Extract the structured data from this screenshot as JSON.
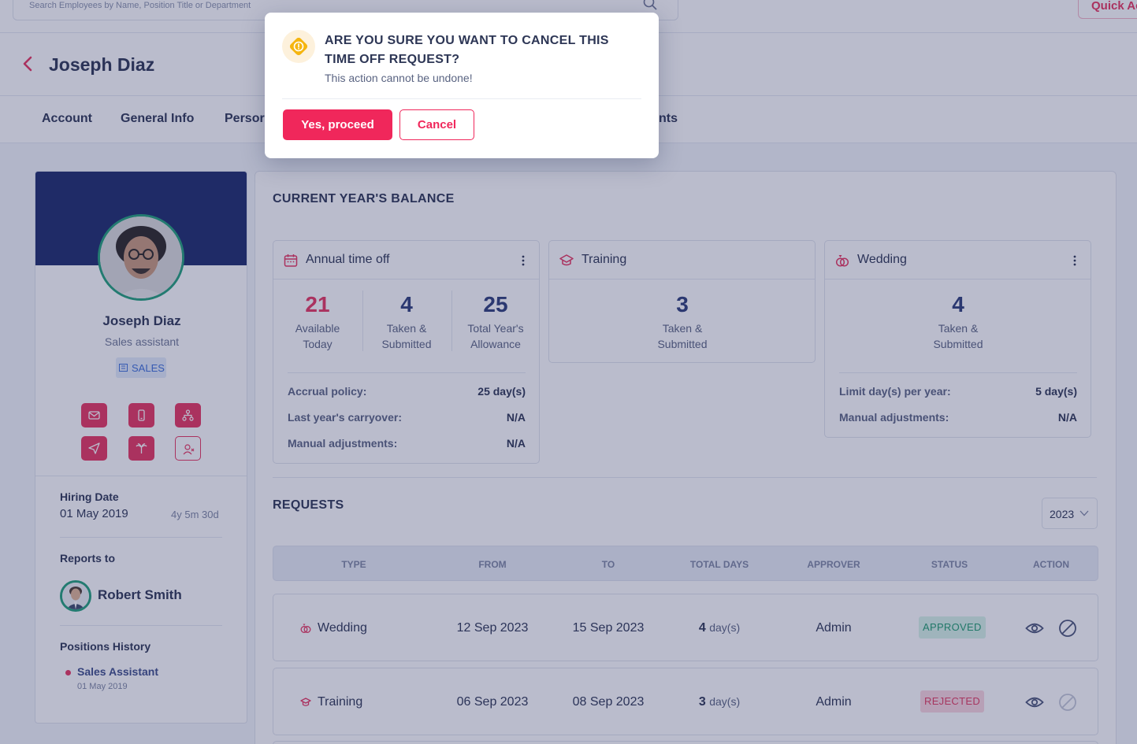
{
  "search": {
    "placeholder": "Search Employees by Name, Position Title or Department"
  },
  "quick_button": {
    "label": "Quick Ac"
  },
  "header": {
    "title": "Joseph Diaz"
  },
  "tabs": [
    {
      "label": "Account"
    },
    {
      "label": "General Info"
    },
    {
      "label": "Persor"
    },
    {
      "label": "nts"
    }
  ],
  "profile": {
    "name": "Joseph Diaz",
    "role": "Sales assistant",
    "department": "SALES",
    "hiring_date_label": "Hiring Date",
    "hiring_date": "01 May 2019",
    "tenure": "4y 5m 30d",
    "reports_to_label": "Reports to",
    "manager_name": "Robert Smith",
    "positions_history_label": "Positions History",
    "positions": [
      {
        "title": "Sales Assistant",
        "date": "01 May 2019"
      }
    ]
  },
  "balance": {
    "title": "CURRENT YEAR'S BALANCE",
    "cards": [
      {
        "title": "Annual time off",
        "icon": "calendar-icon",
        "stats": [
          {
            "value": "21",
            "caption_line1": "Available",
            "caption_line2": "Today"
          },
          {
            "value": "4",
            "caption_line1": "Taken &",
            "caption_line2": "Submitted"
          },
          {
            "value": "25",
            "caption_line1": "Total Year's",
            "caption_line2": "Allowance"
          }
        ],
        "details": [
          {
            "label": "Accrual policy:",
            "value": "25 day(s)"
          },
          {
            "label": "Last year's carryover:",
            "value": "N/A"
          },
          {
            "label": "Manual adjustments:",
            "value": "N/A"
          }
        ]
      },
      {
        "title": "Training",
        "icon": "graduation-cap-icon",
        "stats": [
          {
            "value": "3",
            "caption_line1": "Taken &",
            "caption_line2": "Submitted"
          }
        ]
      },
      {
        "title": "Wedding",
        "icon": "rings-icon",
        "stats": [
          {
            "value": "4",
            "caption_line1": "Taken &",
            "caption_line2": "Submitted"
          }
        ],
        "details": [
          {
            "label": "Limit day(s) per year:",
            "value": "5 day(s)"
          },
          {
            "label": "Manual adjustments:",
            "value": "N/A"
          }
        ]
      }
    ]
  },
  "requests": {
    "title": "REQUESTS",
    "year": "2023",
    "columns": [
      "TYPE",
      "FROM",
      "TO",
      "TOTAL DAYS",
      "APPROVER",
      "STATUS",
      "ACTION"
    ],
    "rows": [
      {
        "type": "Wedding",
        "from": "12 Sep 2023",
        "to": "15 Sep 2023",
        "days": "4",
        "days_unit": "day(s)",
        "approver": "Admin",
        "status": "APPROVED"
      },
      {
        "type": "Training",
        "from": "06 Sep 2023",
        "to": "08 Sep 2023",
        "days": "3",
        "days_unit": "day(s)",
        "approver": "Admin",
        "status": "REJECTED"
      }
    ]
  },
  "dialog": {
    "title": "ARE YOU SURE YOU WANT TO CANCEL THIS TIME OFF REQUEST?",
    "message": "This action cannot be undone!",
    "confirm_label": "Yes, proceed",
    "cancel_label": "Cancel"
  },
  "colors": {
    "accent": "#f0275b",
    "banner": "#1b2a6b",
    "approved": "#1f9c6e",
    "rejected": "#e23a60"
  }
}
